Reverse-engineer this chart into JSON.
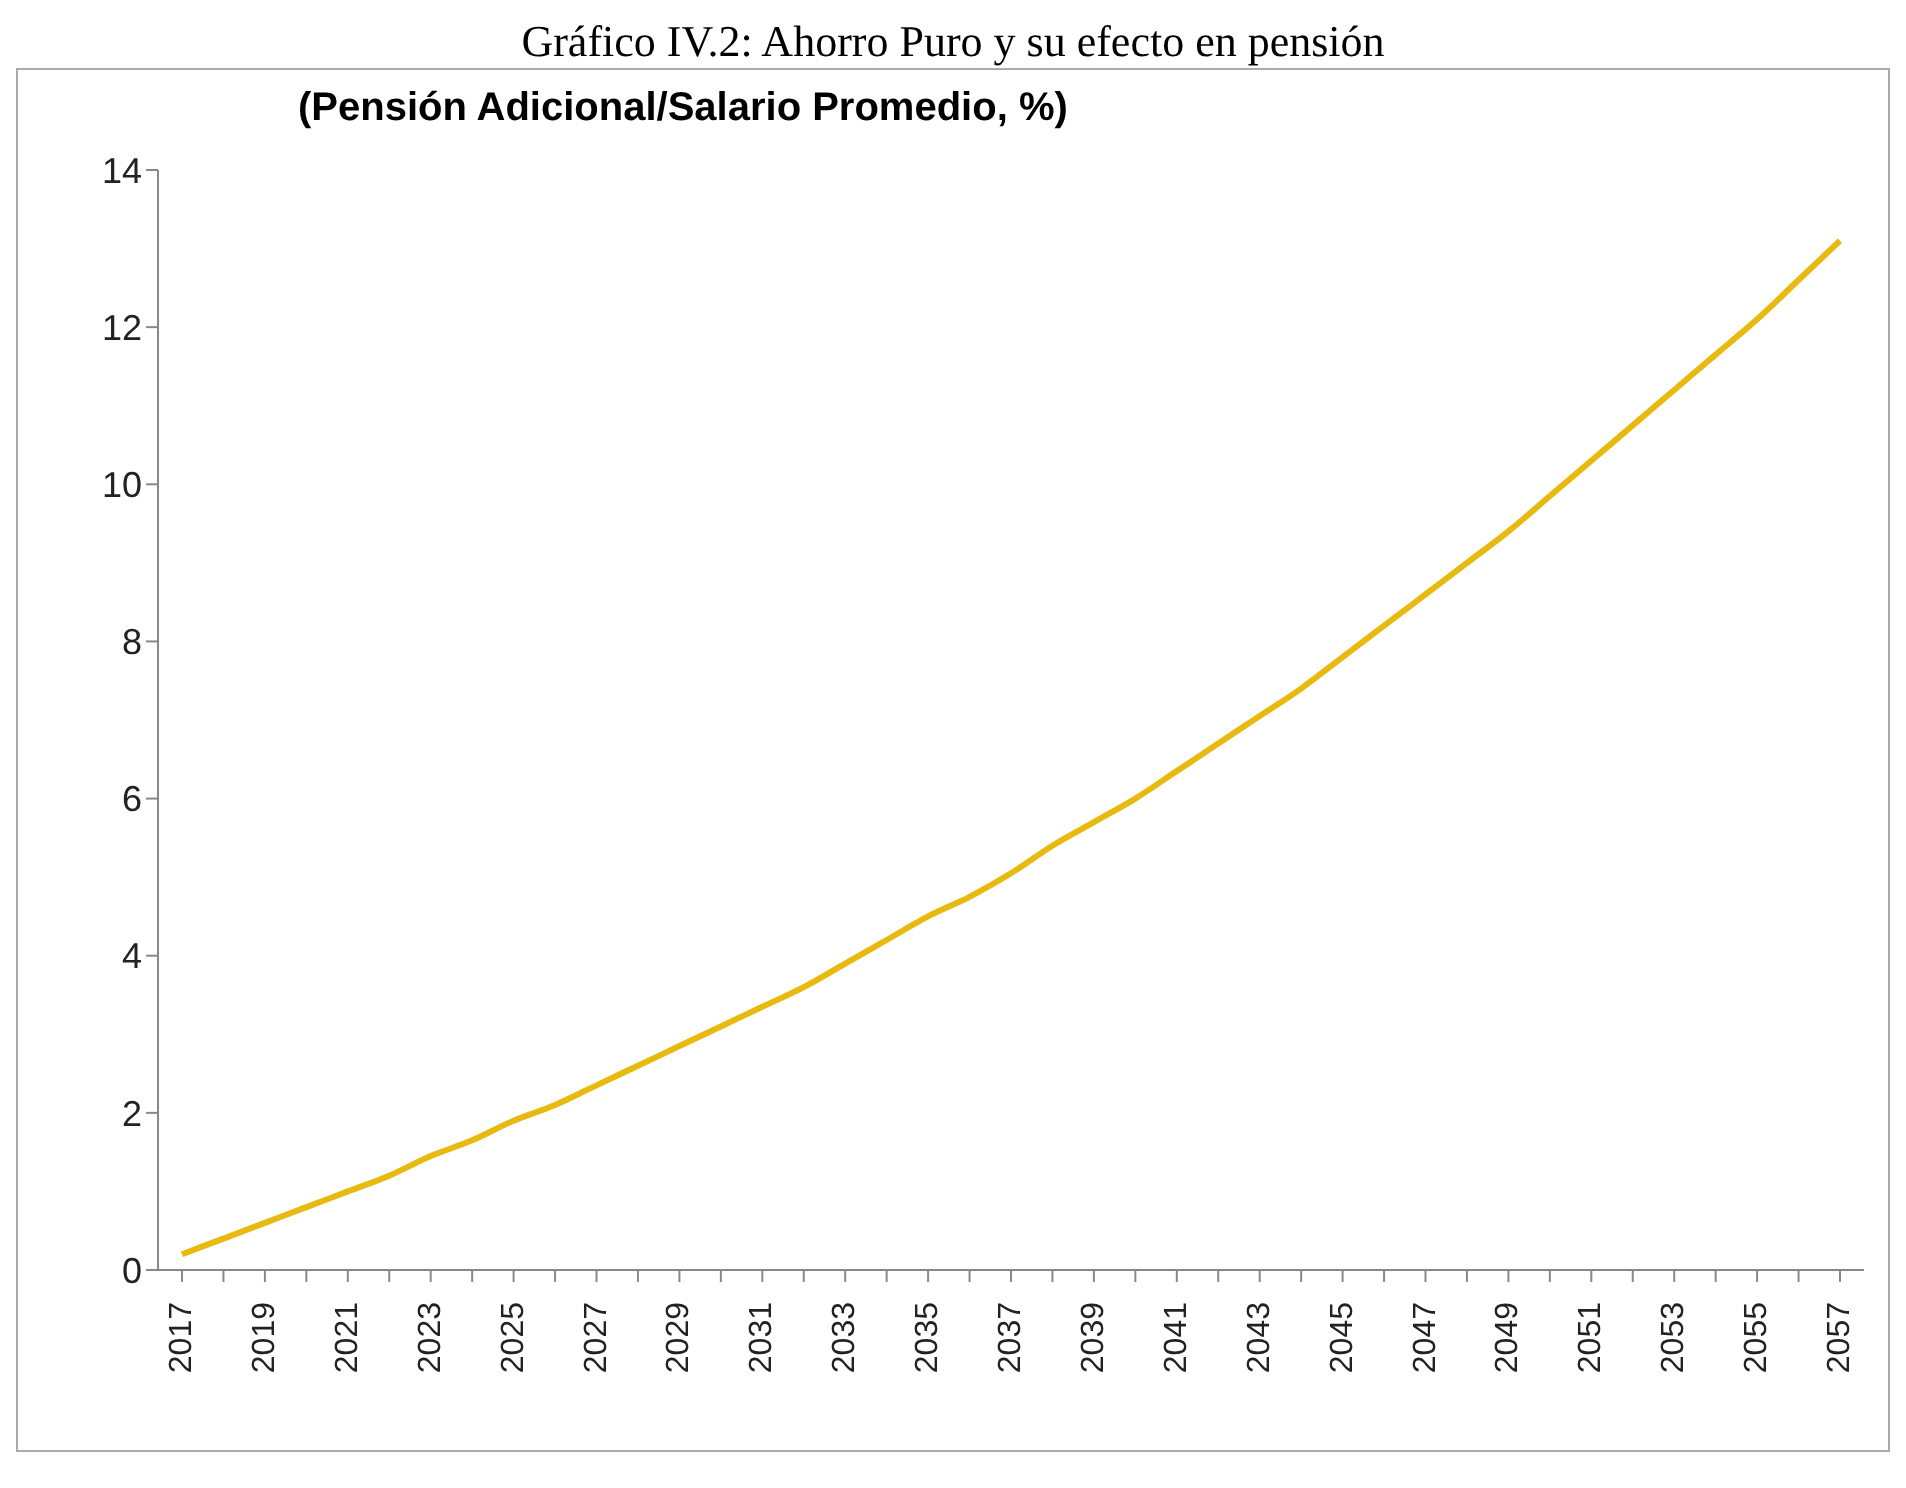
{
  "chart_data": {
    "type": "line",
    "title": "Gráfico IV.2: Ahorro Puro y su efecto en pensión",
    "subtitle": "(Pensión Adicional/Salario Promedio, %)",
    "categories": [
      "2017",
      null,
      "2019",
      null,
      "2021",
      null,
      "2023",
      null,
      "2025",
      null,
      "2027",
      null,
      "2029",
      null,
      "2031",
      null,
      "2033",
      null,
      "2035",
      null,
      "2037",
      null,
      "2039",
      null,
      "2041",
      null,
      "2043",
      null,
      "2045",
      null,
      "2047",
      null,
      "2049",
      null,
      "2051",
      null,
      "2053",
      null,
      "2055",
      null,
      "2057"
    ],
    "series": [
      {
        "color": "#e8b90e",
        "values": [
          0.2,
          0.4,
          0.6,
          0.8,
          1.0,
          1.2,
          1.45,
          1.65,
          1.9,
          2.1,
          2.35,
          2.6,
          2.85,
          3.1,
          3.35,
          3.6,
          3.9,
          4.2,
          4.5,
          4.75,
          5.05,
          5.4,
          5.7,
          6.0,
          6.35,
          6.7,
          7.05,
          7.4,
          7.8,
          8.2,
          8.6,
          9.0,
          9.4,
          9.85,
          10.3,
          10.75,
          11.2,
          11.65,
          12.1,
          12.6,
          13.1
        ]
      }
    ],
    "ylim": [
      0,
      14
    ],
    "yticks": [
      0,
      2,
      4,
      6,
      8,
      10,
      12,
      14
    ],
    "grid": false,
    "legend": false,
    "marker": "none",
    "line_style": "solid"
  }
}
